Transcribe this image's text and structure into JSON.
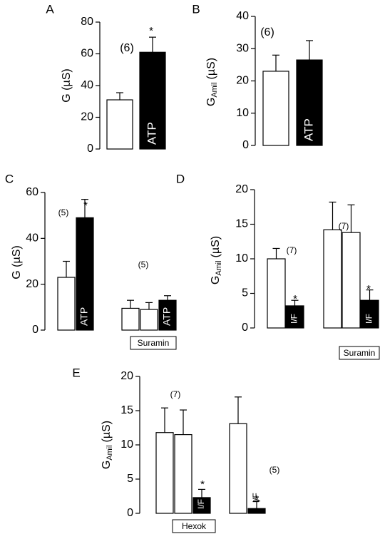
{
  "chart_data": [
    {
      "id": "A",
      "type": "bar",
      "panel_label": "A",
      "ylabel": "G (µS)",
      "ylim": [
        0,
        80
      ],
      "yticks": [
        0,
        20,
        40,
        60,
        80
      ],
      "bars": [
        {
          "value": 31,
          "error": 4.5,
          "color": "white",
          "label": "",
          "star": false
        },
        {
          "value": 61,
          "error": 9.5,
          "color": "black",
          "label": "ATP",
          "star": true
        }
      ],
      "annotations": [
        "(6)"
      ],
      "star_text": "*"
    },
    {
      "id": "B",
      "type": "bar",
      "panel_label": "B",
      "ylabel": "G",
      "ylabel_sub": "Amil",
      "ylabel_unit": "(µS)",
      "ylim": [
        0,
        40
      ],
      "yticks": [
        0,
        10,
        20,
        30,
        40
      ],
      "bars": [
        {
          "value": 23,
          "error": 5,
          "color": "white",
          "label": "",
          "star": false
        },
        {
          "value": 26.5,
          "error": 6,
          "color": "black",
          "label": "ATP",
          "star": false
        }
      ],
      "annotations": [
        "(6)"
      ]
    },
    {
      "id": "C",
      "type": "bar",
      "panel_label": "C",
      "ylabel": "G (µS)",
      "ylim": [
        0,
        60
      ],
      "yticks": [
        0,
        20,
        40,
        60
      ],
      "bars": [
        {
          "value": 23,
          "error": 7,
          "color": "white",
          "label": "",
          "star": false
        },
        {
          "value": 49,
          "error": 8,
          "color": "black",
          "label": "ATP",
          "star": true
        },
        {
          "value": 9.5,
          "error": 3.5,
          "color": "white",
          "label": "",
          "star": false
        },
        {
          "value": 9,
          "error": 3,
          "color": "white",
          "label": "",
          "star": false
        },
        {
          "value": 13,
          "error": 2,
          "color": "black",
          "label": "ATP",
          "star": false
        }
      ],
      "annotations": [
        "(5)",
        "(5)"
      ],
      "group_label": "Suramin",
      "star_text": "*"
    },
    {
      "id": "D",
      "type": "bar",
      "panel_label": "D",
      "ylabel": "G",
      "ylabel_sub": "Amil",
      "ylabel_unit": "(µS)",
      "ylim": [
        0,
        20
      ],
      "yticks": [
        0,
        5,
        10,
        15,
        20
      ],
      "bars": [
        {
          "value": 10,
          "error": 1.5,
          "color": "white",
          "label": "",
          "star": false
        },
        {
          "value": 3.2,
          "error": 0.8,
          "color": "black",
          "label": "I/F",
          "star": true
        },
        {
          "value": 14.2,
          "error": 4,
          "color": "white",
          "label": "",
          "star": false
        },
        {
          "value": 13.8,
          "error": 4,
          "color": "white",
          "label": "",
          "star": false
        },
        {
          "value": 4,
          "error": 1.5,
          "color": "black",
          "label": "I/F",
          "star": true
        }
      ],
      "annotations": [
        "(7)",
        "(7)"
      ],
      "group_label": "Suramin",
      "star_text": "*"
    },
    {
      "id": "E",
      "type": "bar",
      "panel_label": "E",
      "ylabel": "G",
      "ylabel_sub": "Amil",
      "ylabel_unit": "(µS)",
      "ylim": [
        0,
        20
      ],
      "yticks": [
        0,
        5,
        10,
        15,
        20
      ],
      "bars": [
        {
          "value": 11.8,
          "error": 3.6,
          "color": "white",
          "label": "",
          "star": false
        },
        {
          "value": 11.5,
          "error": 3.6,
          "color": "white",
          "label": "",
          "star": false
        },
        {
          "value": 2.3,
          "error": 1.2,
          "color": "black",
          "label": "I/F",
          "star": true
        },
        {
          "value": 13.1,
          "error": 3.9,
          "color": "white",
          "label": "",
          "star": false
        },
        {
          "value": 0.7,
          "error": 1.1,
          "color": "black",
          "label": "I/F",
          "star": true
        }
      ],
      "annotations": [
        "(7)",
        "(5)"
      ],
      "group_label": "Hexok",
      "star_text": "*"
    }
  ]
}
